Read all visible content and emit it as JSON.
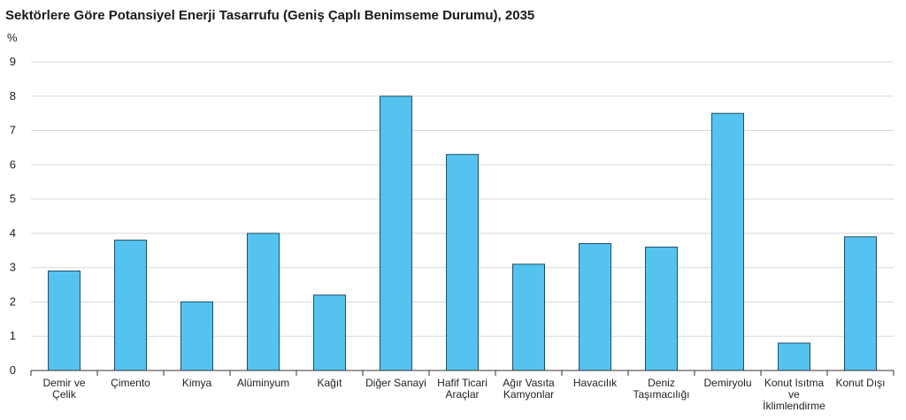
{
  "chart_data": {
    "type": "bar",
    "title": "Sektörlere Göre Potansiyel Enerji Tasarrufu (Geniş Çaplı Benimseme Durumu), 2035",
    "ylabel": "%",
    "xlabel": "",
    "ylim": [
      0,
      9
    ],
    "yticks": [
      0,
      1,
      2,
      3,
      4,
      5,
      6,
      7,
      8,
      9
    ],
    "grid": true,
    "legend": "none",
    "bar_color": "#55c3ef",
    "categories": [
      [
        "Demir ve",
        "Çelik"
      ],
      [
        "Çimento"
      ],
      [
        "Kimya"
      ],
      [
        "Alüminyum"
      ],
      [
        "Kağıt"
      ],
      [
        "Diğer Sanayi"
      ],
      [
        "Hafif Ticari",
        "Araçlar"
      ],
      [
        "Ağır Vasıta",
        "Kamyonlar"
      ],
      [
        "Havacılık"
      ],
      [
        "Deniz",
        "Taşımacılığı"
      ],
      [
        "Demiryolu"
      ],
      [
        "Konut Isıtma",
        "ve",
        "İklimlendirme"
      ],
      [
        "Konut Dışı"
      ]
    ],
    "values": [
      2.9,
      3.8,
      2.0,
      4.0,
      2.2,
      8.0,
      6.3,
      3.1,
      3.7,
      3.6,
      7.5,
      0.8,
      3.9
    ]
  }
}
